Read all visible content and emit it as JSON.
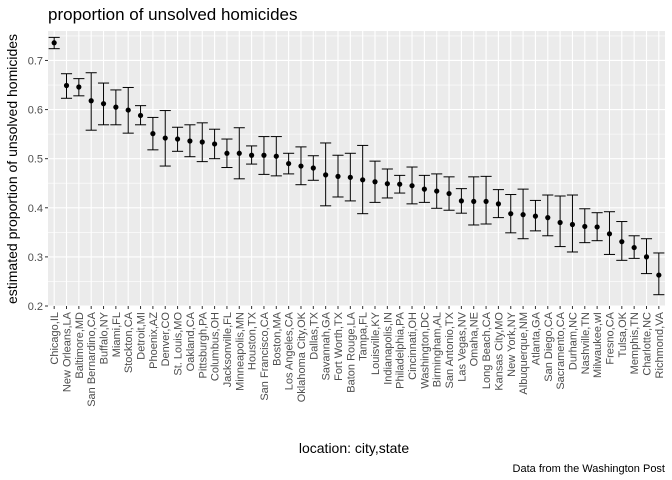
{
  "chart_data": {
    "type": "scatter",
    "title": "proportion of unsolved homicides",
    "xlabel": "location: city,state",
    "ylabel": "estimated proportion of unsolved homicides",
    "caption": "Data from the Washington Post",
    "ylim": [
      0.2,
      0.76
    ],
    "yticks": [
      "0.2",
      "0.3",
      "0.4",
      "0.5",
      "0.6",
      "0.7"
    ],
    "grid": true,
    "background": "#ebebeb",
    "grid_color": "#ffffff",
    "point_color": "#000000",
    "errorbars": true,
    "points": [
      {
        "city": "Chicago,IL",
        "estimate": 0.736,
        "low": 0.724,
        "high": 0.747
      },
      {
        "city": "New Orleans,LA",
        "estimate": 0.649,
        "low": 0.623,
        "high": 0.673
      },
      {
        "city": "Baltimore,MD",
        "estimate": 0.646,
        "low": 0.628,
        "high": 0.663
      },
      {
        "city": "San Bernardino,CA",
        "estimate": 0.618,
        "low": 0.558,
        "high": 0.675
      },
      {
        "city": "Buffalo,NY",
        "estimate": 0.612,
        "low": 0.569,
        "high": 0.654
      },
      {
        "city": "Miami,FL",
        "estimate": 0.605,
        "low": 0.569,
        "high": 0.64
      },
      {
        "city": "Stockton,CA",
        "estimate": 0.599,
        "low": 0.552,
        "high": 0.645
      },
      {
        "city": "Detroit,MI",
        "estimate": 0.588,
        "low": 0.569,
        "high": 0.608
      },
      {
        "city": "Phoenix,AZ",
        "estimate": 0.551,
        "low": 0.518,
        "high": 0.584
      },
      {
        "city": "Denver,CO",
        "estimate": 0.542,
        "low": 0.485,
        "high": 0.598
      },
      {
        "city": "St. Louis,MO",
        "estimate": 0.54,
        "low": 0.515,
        "high": 0.564
      },
      {
        "city": "Oakland,CA",
        "estimate": 0.536,
        "low": 0.504,
        "high": 0.569
      },
      {
        "city": "Pittsburgh,PA",
        "estimate": 0.534,
        "low": 0.494,
        "high": 0.573
      },
      {
        "city": "Columbus,OH",
        "estimate": 0.53,
        "low": 0.5,
        "high": 0.56
      },
      {
        "city": "Jacksonville,FL",
        "estimate": 0.511,
        "low": 0.482,
        "high": 0.54
      },
      {
        "city": "Minneapolis,MN",
        "estimate": 0.511,
        "low": 0.459,
        "high": 0.563
      },
      {
        "city": "Houston,TX",
        "estimate": 0.507,
        "low": 0.489,
        "high": 0.526
      },
      {
        "city": "San Francisco,CA",
        "estimate": 0.507,
        "low": 0.468,
        "high": 0.545
      },
      {
        "city": "Boston,MA",
        "estimate": 0.505,
        "low": 0.465,
        "high": 0.545
      },
      {
        "city": "Los Angeles,CA",
        "estimate": 0.49,
        "low": 0.469,
        "high": 0.511
      },
      {
        "city": "Oklahoma City,OK",
        "estimate": 0.485,
        "low": 0.447,
        "high": 0.524
      },
      {
        "city": "Dallas,TX",
        "estimate": 0.481,
        "low": 0.456,
        "high": 0.506
      },
      {
        "city": "Savannah,GA",
        "estimate": 0.467,
        "low": 0.404,
        "high": 0.532
      },
      {
        "city": "Fort Worth,TX",
        "estimate": 0.464,
        "low": 0.422,
        "high": 0.507
      },
      {
        "city": "Baton Rouge,LA",
        "estimate": 0.462,
        "low": 0.414,
        "high": 0.511
      },
      {
        "city": "Tampa,FL",
        "estimate": 0.457,
        "low": 0.388,
        "high": 0.527
      },
      {
        "city": "Louisville,KY",
        "estimate": 0.453,
        "low": 0.411,
        "high": 0.495
      },
      {
        "city": "Indianapolis,IN",
        "estimate": 0.449,
        "low": 0.42,
        "high": 0.479
      },
      {
        "city": "Philadelphia,PA",
        "estimate": 0.448,
        "low": 0.43,
        "high": 0.466
      },
      {
        "city": "Cincinnati,OH",
        "estimate": 0.445,
        "low": 0.408,
        "high": 0.483
      },
      {
        "city": "Washington,DC",
        "estimate": 0.438,
        "low": 0.411,
        "high": 0.466
      },
      {
        "city": "Birmingham,AL",
        "estimate": 0.434,
        "low": 0.399,
        "high": 0.469
      },
      {
        "city": "San Antonio,TX",
        "estimate": 0.429,
        "low": 0.395,
        "high": 0.463
      },
      {
        "city": "Las Vegas,NV",
        "estimate": 0.414,
        "low": 0.389,
        "high": 0.439
      },
      {
        "city": "Omaha,NE",
        "estimate": 0.413,
        "low": 0.365,
        "high": 0.463
      },
      {
        "city": "Long Beach,CA",
        "estimate": 0.413,
        "low": 0.367,
        "high": 0.464
      },
      {
        "city": "Kansas City,MO",
        "estimate": 0.408,
        "low": 0.38,
        "high": 0.437
      },
      {
        "city": "New York,NY",
        "estimate": 0.388,
        "low": 0.349,
        "high": 0.427
      },
      {
        "city": "Albuquerque,NM",
        "estimate": 0.386,
        "low": 0.337,
        "high": 0.438
      },
      {
        "city": "Atlanta,GA",
        "estimate": 0.383,
        "low": 0.353,
        "high": 0.415
      },
      {
        "city": "San Diego,CA",
        "estimate": 0.38,
        "low": 0.343,
        "high": 0.426
      },
      {
        "city": "Sacramento,CA",
        "estimate": 0.37,
        "low": 0.321,
        "high": 0.424
      },
      {
        "city": "Durham,NC",
        "estimate": 0.366,
        "low": 0.31,
        "high": 0.426
      },
      {
        "city": "Nashville,TN",
        "estimate": 0.362,
        "low": 0.329,
        "high": 0.398
      },
      {
        "city": "Milwaukee,wI",
        "estimate": 0.361,
        "low": 0.333,
        "high": 0.39
      },
      {
        "city": "Fresno,CA",
        "estimate": 0.347,
        "low": 0.305,
        "high": 0.392
      },
      {
        "city": "Tulsa,OK",
        "estimate": 0.331,
        "low": 0.293,
        "high": 0.372
      },
      {
        "city": "Memphis,TN",
        "estimate": 0.319,
        "low": 0.297,
        "high": 0.343
      },
      {
        "city": "Charlotte,NC",
        "estimate": 0.3,
        "low": 0.266,
        "high": 0.337
      },
      {
        "city": "Richmond,VA",
        "estimate": 0.263,
        "low": 0.223,
        "high": 0.308
      }
    ]
  }
}
